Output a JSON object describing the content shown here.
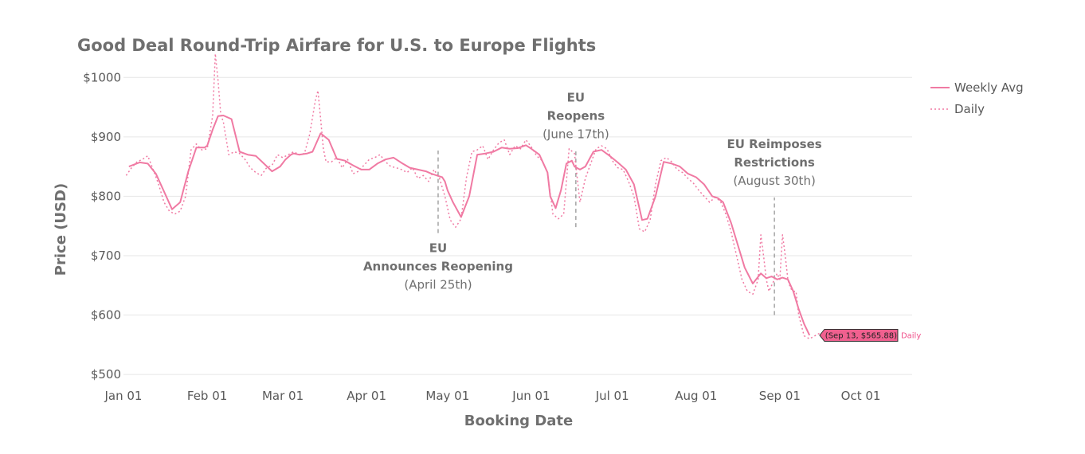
{
  "chart_data": {
    "type": "line",
    "title": "Good Deal Round-Trip Airfare for U.S. to Europe Flights",
    "xlabel": "Booking Date",
    "ylabel": "Price (USD)",
    "ylim": [
      480,
      1050
    ],
    "yticks": [
      500,
      600,
      700,
      800,
      900,
      1000
    ],
    "ytick_labels": [
      "$500",
      "$600",
      "$700",
      "$800",
      "$900",
      "$1000"
    ],
    "xlim": [
      0,
      292
    ],
    "xticks": [
      0,
      31,
      59,
      90,
      120,
      151,
      181,
      212,
      243,
      273
    ],
    "xtick_labels": [
      "Jan 01",
      "Feb 01",
      "Mar 01",
      "Apr 01",
      "May 01",
      "Jun 01",
      "Jul 01",
      "Aug 01",
      "Sep 01",
      "Oct 01"
    ],
    "grid": "horizontal",
    "colors": {
      "line": "#f07aa3",
      "grid": "#e6e6e6",
      "annotation": "#777777",
      "tooltip_fill": "#f0608f"
    },
    "series": [
      {
        "name": "Weekly Avg",
        "style": "solid",
        "x": [
          2,
          6,
          9,
          12,
          15,
          18,
          21,
          24,
          27,
          30,
          31,
          33,
          35,
          37,
          40,
          43,
          46,
          49,
          52,
          55,
          58,
          60,
          62,
          63,
          65,
          68,
          70,
          73,
          76,
          79,
          82,
          85,
          88,
          91,
          94,
          97,
          100,
          103,
          106,
          109,
          112,
          114,
          116,
          118,
          119,
          120,
          122,
          125,
          128,
          131,
          134,
          137,
          140,
          143,
          146,
          149,
          151,
          154,
          157,
          158,
          160,
          162,
          164,
          166,
          167,
          169,
          171,
          174,
          177,
          180,
          183,
          186,
          189,
          190,
          192,
          194,
          197,
          200,
          203,
          206,
          209,
          212,
          215,
          218,
          220,
          222,
          225,
          228,
          230,
          233,
          236,
          238,
          240,
          242,
          244,
          246,
          248,
          250,
          252,
          254
        ],
        "values": [
          850,
          857,
          855,
          838,
          808,
          778,
          790,
          842,
          882,
          882,
          885,
          912,
          935,
          936,
          930,
          875,
          870,
          868,
          855,
          842,
          850,
          862,
          870,
          872,
          870,
          872,
          875,
          906,
          895,
          863,
          860,
          852,
          845,
          845,
          855,
          862,
          865,
          856,
          848,
          845,
          842,
          838,
          835,
          832,
          825,
          810,
          790,
          765,
          800,
          870,
          872,
          875,
          882,
          880,
          881,
          886,
          880,
          870,
          840,
          800,
          780,
          810,
          855,
          860,
          850,
          845,
          850,
          875,
          878,
          868,
          857,
          845,
          820,
          800,
          760,
          762,
          800,
          858,
          855,
          850,
          838,
          832,
          820,
          800,
          797,
          790,
          755,
          710,
          680,
          653,
          670,
          662,
          665,
          660,
          663,
          660,
          640,
          610,
          585,
          566
        ]
      },
      {
        "name": "Daily",
        "style": "dotted",
        "x": [
          1,
          3,
          5,
          7,
          9,
          11,
          13,
          15,
          17,
          19,
          21,
          23,
          25,
          27,
          29,
          31,
          33,
          34,
          35,
          36,
          37,
          39,
          41,
          43,
          45,
          47,
          49,
          51,
          53,
          55,
          57,
          59,
          61,
          63,
          65,
          67,
          69,
          71,
          72,
          73,
          74,
          75,
          77,
          79,
          81,
          83,
          85,
          87,
          89,
          91,
          93,
          95,
          97,
          99,
          101,
          103,
          105,
          107,
          109,
          111,
          113,
          115,
          117,
          119,
          121,
          123,
          125,
          127,
          129,
          131,
          133,
          135,
          137,
          139,
          141,
          143,
          145,
          147,
          149,
          151,
          153,
          155,
          157,
          159,
          161,
          163,
          165,
          167,
          169,
          171,
          173,
          175,
          177,
          179,
          181,
          183,
          185,
          187,
          189,
          191,
          193,
          195,
          197,
          199,
          201,
          203,
          205,
          207,
          209,
          211,
          213,
          215,
          217,
          219,
          221,
          223,
          225,
          227,
          229,
          231,
          233,
          235,
          236,
          237,
          238,
          239,
          240,
          241,
          242,
          243,
          244,
          245,
          246,
          247,
          248,
          249,
          250,
          252,
          254,
          256,
          258
        ],
        "values": [
          835,
          848,
          858,
          862,
          868,
          845,
          820,
          790,
          775,
          770,
          775,
          800,
          878,
          888,
          878,
          880,
          935,
          1040,
          995,
          938,
          925,
          870,
          875,
          872,
          862,
          848,
          840,
          835,
          848,
          852,
          870,
          865,
          870,
          875,
          870,
          872,
          905,
          960,
          978,
          930,
          880,
          858,
          858,
          865,
          848,
          862,
          838,
          842,
          852,
          862,
          865,
          870,
          858,
          850,
          848,
          845,
          840,
          848,
          830,
          835,
          825,
          845,
          830,
          800,
          760,
          748,
          762,
          832,
          875,
          878,
          885,
          862,
          878,
          890,
          895,
          870,
          885,
          880,
          895,
          883,
          868,
          860,
          840,
          770,
          762,
          770,
          880,
          872,
          790,
          830,
          855,
          880,
          885,
          880,
          860,
          848,
          845,
          825,
          800,
          745,
          740,
          760,
          820,
          860,
          865,
          858,
          845,
          840,
          830,
          822,
          810,
          800,
          790,
          798,
          792,
          770,
          740,
          700,
          660,
          640,
          635,
          660,
          735,
          700,
          660,
          640,
          650,
          660,
          670,
          660,
          735,
          700,
          660,
          645,
          640,
          640,
          600,
          565,
          560,
          565,
          570
        ]
      }
    ],
    "annotations": [
      {
        "x": 116.5,
        "line_from": 738,
        "line_to": 877,
        "lines": [
          "EU",
          "Announces Reopening",
          "(April 25th)"
        ],
        "styles": [
          "bold",
          "bold",
          "normal"
        ],
        "placement": "below"
      },
      {
        "x": 167.5,
        "line_from": 748,
        "line_to": 876,
        "lines": [
          "EU",
          "Reopens",
          "(June 17th)"
        ],
        "styles": [
          "bold",
          "bold",
          "normal"
        ],
        "placement": "above"
      },
      {
        "x": 241,
        "line_from": 600,
        "line_to": 798,
        "lines": [
          "EU Reimposes",
          "Restrictions",
          "(August 30th)"
        ],
        "styles": [
          "bold",
          "bold",
          "normal"
        ],
        "placement": "above"
      }
    ],
    "tooltip": {
      "series": "Daily",
      "text": "(Sep 13, $565.88)",
      "x": 256,
      "y": 565.88
    }
  }
}
